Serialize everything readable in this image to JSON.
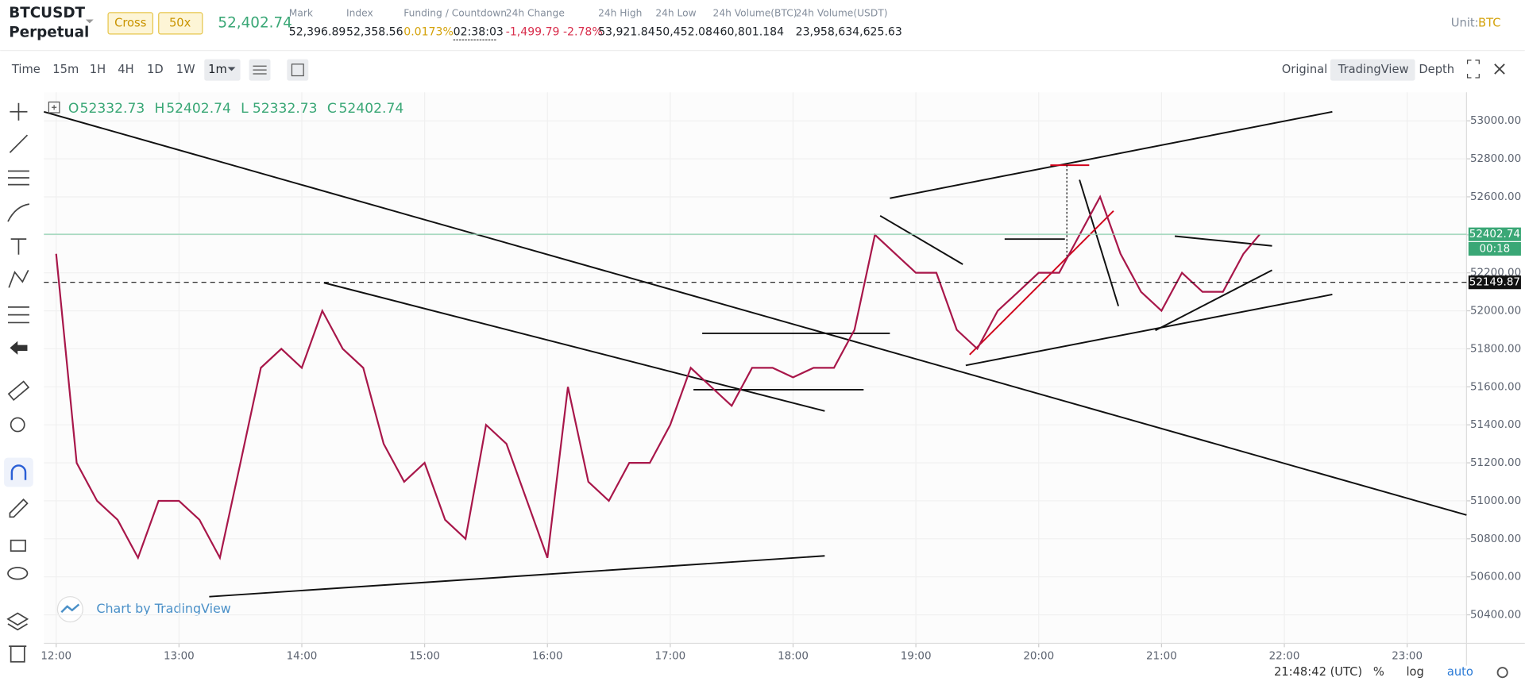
{
  "header": {
    "symbol": "BTCUSDT",
    "contract": "Perpetual",
    "margin_mode": "Cross",
    "leverage": "50x",
    "last_price": "52,402.74",
    "stats": [
      {
        "label": "Mark",
        "values": [
          "52,396.89"
        ]
      },
      {
        "label": "Index",
        "values": [
          "52,358.56"
        ]
      },
      {
        "label": "Funding / Countdown",
        "values": [
          "0.0173%",
          "02:38:03"
        ]
      },
      {
        "label": "24h Change",
        "values": [
          "-1,499.79 -2.78%"
        ]
      },
      {
        "label": "24h High",
        "values": [
          "53,921.84"
        ]
      },
      {
        "label": "24h Low",
        "values": [
          "50,452.08"
        ]
      },
      {
        "label": "24h Volume(BTC)",
        "values": [
          "460,801.184"
        ]
      },
      {
        "label": "24h Volume(USDT)",
        "values": [
          "23,958,634,625.63"
        ]
      }
    ],
    "unit_label": "Unit:",
    "unit": "BTC"
  },
  "toolbar": {
    "intervals": [
      "Time",
      "15m",
      "1H",
      "4H",
      "1D",
      "1W"
    ],
    "selected_interval": "1m",
    "views": [
      "Original",
      "TradingView",
      "Depth"
    ],
    "active_view": "TradingView"
  },
  "footer": {
    "clock": "21:48:42 (UTC)",
    "options": [
      "%",
      "log",
      "auto"
    ]
  },
  "watermark": "Chart by TradingView",
  "chart_data": {
    "type": "line",
    "color": "#a8174a",
    "ohlc": [
      {
        "label": "O",
        "value": 52332.73
      },
      {
        "label": "H",
        "value": 52402.74
      },
      {
        "label": "L",
        "value": 52332.73
      },
      {
        "label": "C",
        "value": 52402.74
      }
    ],
    "x": [
      "12:00",
      "12:10",
      "12:20",
      "12:30",
      "12:40",
      "12:50",
      "13:00",
      "13:10",
      "13:20",
      "13:30",
      "13:40",
      "13:50",
      "14:00",
      "14:10",
      "14:20",
      "14:30",
      "14:40",
      "14:50",
      "15:00",
      "15:10",
      "15:20",
      "15:30",
      "15:40",
      "15:50",
      "16:00",
      "16:10",
      "16:20",
      "16:30",
      "16:40",
      "16:50",
      "17:00",
      "17:10",
      "17:20",
      "17:30",
      "17:40",
      "17:50",
      "18:00",
      "18:10",
      "18:20",
      "18:30",
      "18:40",
      "18:50",
      "19:00",
      "19:10",
      "19:20",
      "19:30",
      "19:40",
      "19:50",
      "20:00",
      "20:10",
      "20:20",
      "20:30",
      "20:40",
      "20:50",
      "21:00",
      "21:10",
      "21:20",
      "21:30",
      "21:40",
      "21:48"
    ],
    "values": [
      52300,
      51200,
      51000,
      50900,
      50700,
      51000,
      51000,
      50900,
      50700,
      51200,
      51700,
      51800,
      51700,
      52000,
      51800,
      51700,
      51300,
      51100,
      51200,
      50900,
      50800,
      51400,
      51300,
      51000,
      50700,
      51600,
      51100,
      51000,
      51200,
      51200,
      51400,
      51700,
      51600,
      51500,
      51700,
      51700,
      51650,
      51700,
      51700,
      51900,
      52400,
      52300,
      52200,
      52200,
      51900,
      51800,
      52000,
      52100,
      52200,
      52200,
      52400,
      52600,
      52300,
      52100,
      52000,
      52200,
      52100,
      52100,
      52300,
      52402.74
    ],
    "last_price": 52402.74,
    "countdown": "00:18",
    "marker_price": 52149.87,
    "xlim": [
      "11:54",
      "23:29"
    ],
    "xticks": [
      "12:00",
      "13:00",
      "14:00",
      "15:00",
      "16:00",
      "17:00",
      "18:00",
      "19:00",
      "20:00",
      "21:00",
      "22:00",
      "23:00"
    ],
    "ylim": [
      50250,
      53150
    ],
    "yticks": [
      {
        "value": 50400,
        "label": "50400.00"
      },
      {
        "value": 50600,
        "label": "50600.00"
      },
      {
        "value": 50800,
        "label": "50800.00"
      },
      {
        "value": 51000,
        "label": "51000.00"
      },
      {
        "value": 51200,
        "label": "51200.00"
      },
      {
        "value": 51400,
        "label": "51400.00"
      },
      {
        "value": 51600,
        "label": "51600.00"
      },
      {
        "value": 51800,
        "label": "51800.00"
      },
      {
        "value": 52000,
        "label": "52000.00"
      },
      {
        "value": 52200,
        "label": "52200.00"
      },
      {
        "value": 52400,
        "label": "52400.00"
      },
      {
        "value": 52600,
        "label": "52600.00"
      },
      {
        "value": 52800,
        "label": "52800.00"
      },
      {
        "value": 53000,
        "label": "53000.00"
      }
    ],
    "grid": true
  }
}
